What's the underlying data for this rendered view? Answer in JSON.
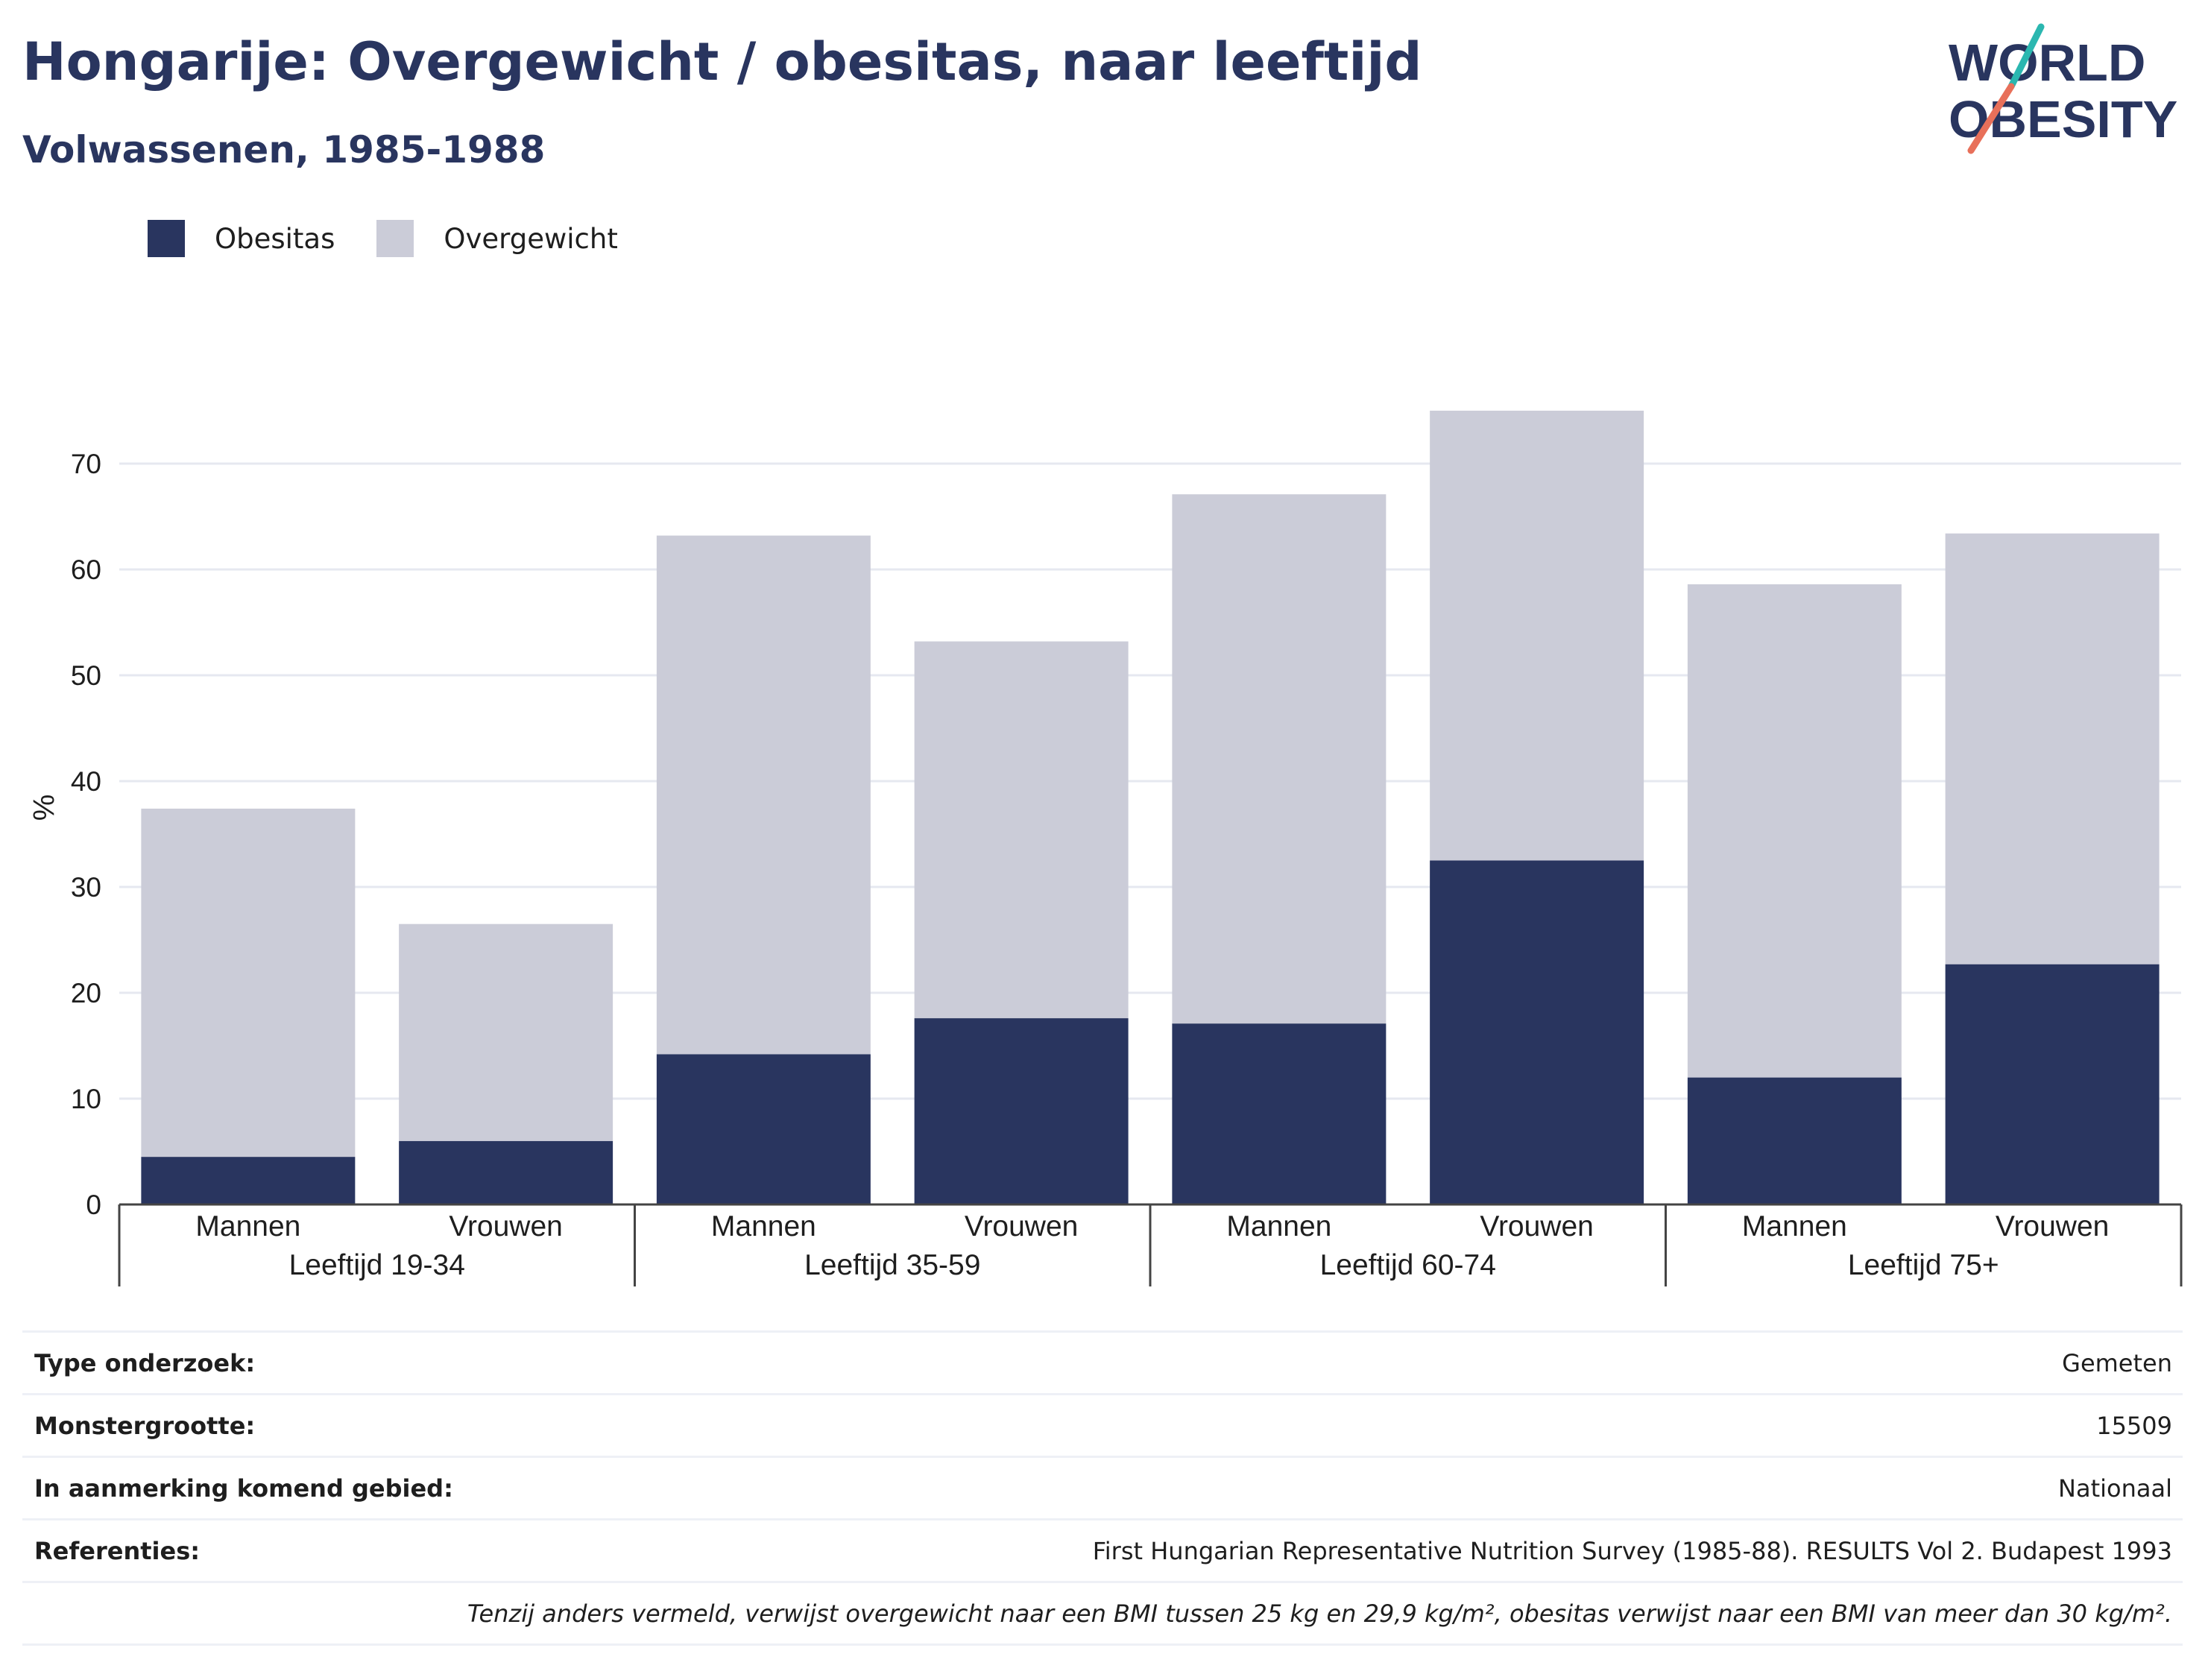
{
  "header": {
    "title": "Hongarije: Overgewicht / obesitas, naar leeftijd",
    "subtitle": "Volwassenen, 1985-1988"
  },
  "logo": {
    "line1": "WORLD",
    "line2": "OBESITY"
  },
  "colors": {
    "obesitas": "#29355f",
    "overgewicht": "#cbccd8",
    "text": "#1e1e1e",
    "grid": "#e6e8f0",
    "brand": "#29355f",
    "accent_teal": "#2bb7b0",
    "accent_coral": "#e8705a"
  },
  "legend": [
    {
      "label": "Obesitas",
      "color": "#29355f"
    },
    {
      "label": "Overgewicht",
      "color": "#cbccd8"
    }
  ],
  "chart_data": {
    "type": "bar",
    "stacked": true,
    "ylabel": "%",
    "ylim": [
      0,
      75
    ],
    "yticks": [
      0,
      10,
      20,
      30,
      40,
      50,
      60,
      70
    ],
    "groups": [
      "Leeftijd 19-34",
      "Leeftijd 35-59",
      "Leeftijd 60-74",
      "Leeftijd 75+"
    ],
    "categories": [
      "Mannen",
      "Vrouwen",
      "Mannen",
      "Vrouwen",
      "Mannen",
      "Vrouwen",
      "Mannen",
      "Vrouwen"
    ],
    "series": [
      {
        "name": "Obesitas",
        "values": [
          4.5,
          6.0,
          14.2,
          17.6,
          17.1,
          32.5,
          12.0,
          22.7
        ]
      },
      {
        "name": "Overgewicht",
        "values": [
          32.9,
          20.5,
          49.0,
          35.6,
          50.0,
          42.5,
          46.6,
          40.7
        ]
      }
    ],
    "grid": true,
    "legend_position": "top-left"
  },
  "meta": [
    {
      "label": "Type onderzoek:",
      "value": "Gemeten"
    },
    {
      "label": "Monstergrootte:",
      "value": "15509"
    },
    {
      "label": "In aanmerking komend gebied:",
      "value": "Nationaal"
    },
    {
      "label": "Referenties:",
      "value": "First Hungarian Representative Nutrition Survey (1985-88). RESULTS Vol 2. Budapest 1993"
    }
  ],
  "footnote": "Tenzij anders vermeld, verwijst overgewicht naar een BMI tussen 25 kg en 29,9 kg/m², obesitas verwijst naar een BMI van meer dan 30 kg/m²."
}
